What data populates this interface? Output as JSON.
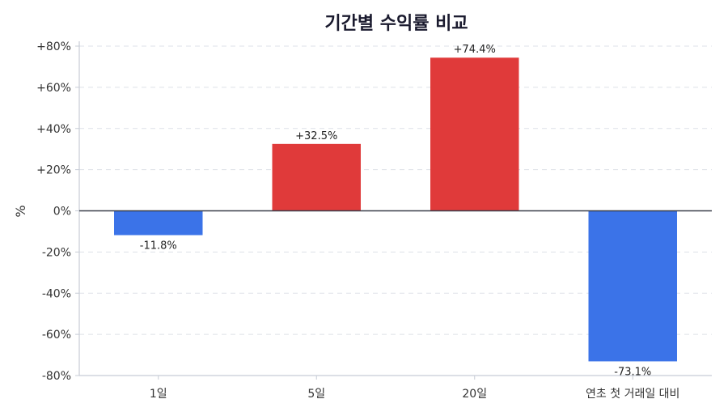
{
  "chart_data": {
    "type": "bar",
    "title": "기간별 수익률 비교",
    "xlabel": "",
    "ylabel": "%",
    "categories": [
      "1일",
      "5일",
      "20일",
      "연초 첫 거래일 대비"
    ],
    "values": [
      -11.8,
      32.5,
      74.4,
      -73.1
    ],
    "value_labels": [
      "-11.8%",
      "+32.5%",
      "+74.4%",
      "-73.1%"
    ],
    "ylim": [
      -80,
      80
    ],
    "yticks": [
      80,
      60,
      40,
      20,
      0,
      -20,
      -40,
      -60,
      -80
    ],
    "ytick_labels": [
      "+80%",
      "+60%",
      "+40%",
      "+20%",
      "0%",
      "-20%",
      "-40%",
      "-60%",
      "-80%"
    ],
    "grid": true,
    "legend": "none",
    "colors": {
      "positive": "#e03a3a",
      "negative": "#3b73e8"
    }
  }
}
